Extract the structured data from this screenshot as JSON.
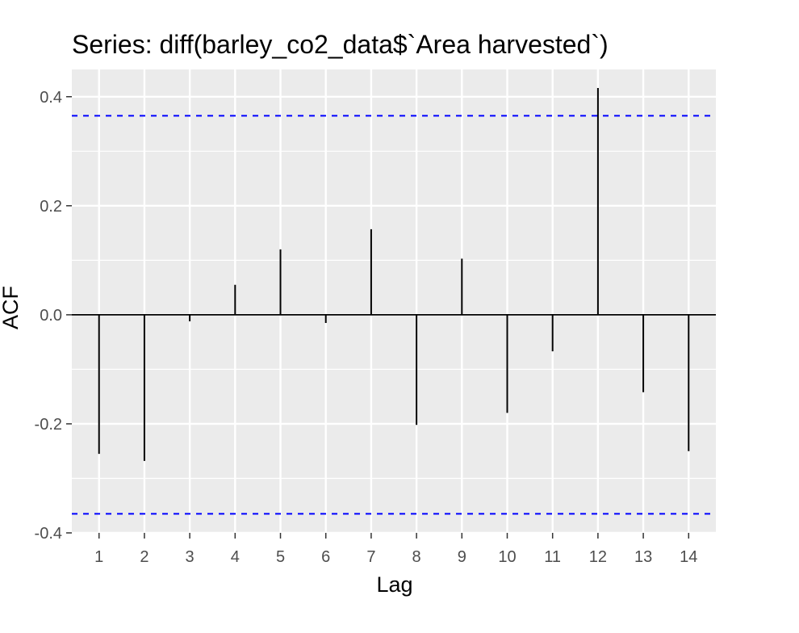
{
  "chart_data": {
    "type": "bar",
    "subtype": "acf-lollipop",
    "title": "Series: diff(barley_co2_data$`Area harvested`)",
    "xlabel": "Lag",
    "ylabel": "ACF",
    "x": [
      1,
      2,
      3,
      4,
      5,
      6,
      7,
      8,
      9,
      10,
      11,
      12,
      13,
      14
    ],
    "values": [
      -0.255,
      -0.268,
      -0.012,
      0.055,
      0.12,
      -0.015,
      0.157,
      -0.202,
      0.103,
      -0.18,
      -0.067,
      0.416,
      -0.142,
      -0.25
    ],
    "xlim": [
      0.4,
      14.6
    ],
    "ylim": [
      -0.4,
      0.45
    ],
    "x_ticks": [
      "1",
      "2",
      "3",
      "4",
      "5",
      "6",
      "7",
      "8",
      "9",
      "10",
      "11",
      "12",
      "13",
      "14"
    ],
    "y_ticks": [
      "-0.4",
      "-0.2",
      "0.0",
      "0.2",
      "0.4"
    ],
    "y_tick_values": [
      -0.4,
      -0.2,
      0.0,
      0.2,
      0.4
    ],
    "confidence_bounds": [
      0.365,
      -0.365
    ],
    "grid": true,
    "colors": {
      "panel_background": "#ebebeb",
      "grid": "#ffffff",
      "bars": "#000000",
      "confidence_line": "#0000ff",
      "tick_label": "#4d4d4d"
    }
  }
}
